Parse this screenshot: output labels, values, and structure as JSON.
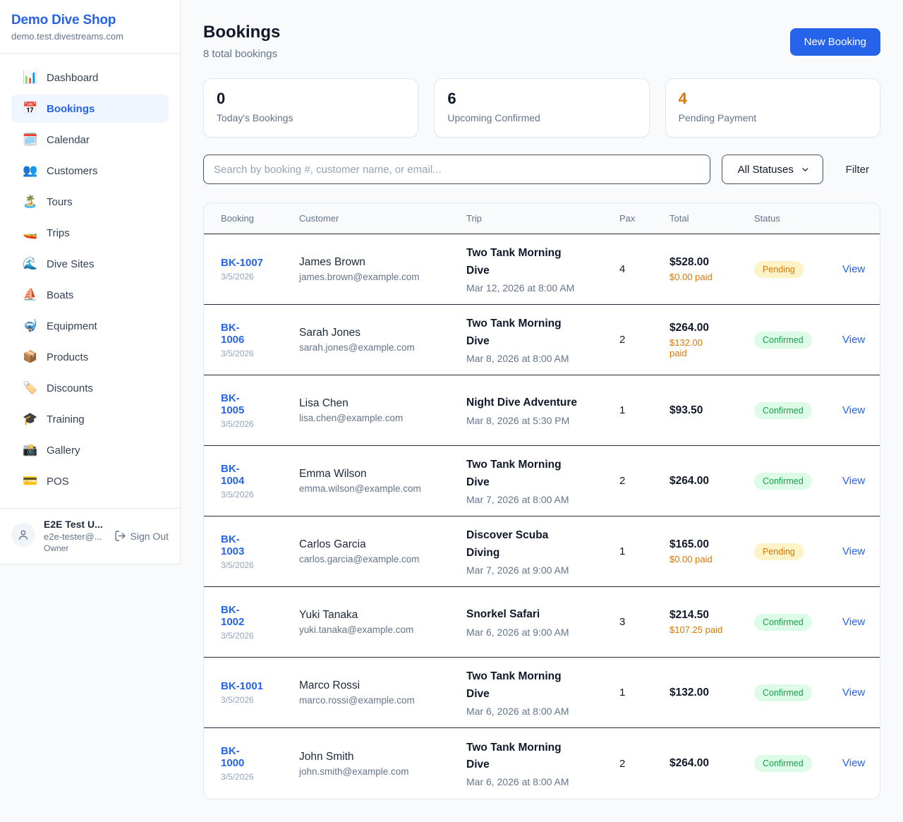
{
  "colors": {
    "accent": "#2563eb",
    "active_nav_bg": "#eff6ff",
    "pending_text": "#d97706",
    "pending_bg": "#fef3c7",
    "confirmed_text": "#16a34a",
    "confirmed_bg": "#dcfce7",
    "warning_number": "#d97706"
  },
  "sidebar": {
    "shop_name": "Demo Dive Shop",
    "shop_domain": "demo.test.divestreams.com",
    "items": [
      {
        "slug": "dashboard",
        "icon": "📊",
        "label": "Dashboard",
        "active": false
      },
      {
        "slug": "bookings",
        "icon": "📅",
        "label": "Bookings",
        "active": true
      },
      {
        "slug": "calendar",
        "icon": "🗓️",
        "label": "Calendar",
        "active": false
      },
      {
        "slug": "customers",
        "icon": "👥",
        "label": "Customers",
        "active": false
      },
      {
        "slug": "tours",
        "icon": "🏝️",
        "label": "Tours",
        "active": false
      },
      {
        "slug": "trips",
        "icon": "🚤",
        "label": "Trips",
        "active": false
      },
      {
        "slug": "dive-sites",
        "icon": "🌊",
        "label": "Dive Sites",
        "active": false
      },
      {
        "slug": "boats",
        "icon": "⛵",
        "label": "Boats",
        "active": false
      },
      {
        "slug": "equipment",
        "icon": "🤿",
        "label": "Equipment",
        "active": false
      },
      {
        "slug": "products",
        "icon": "📦",
        "label": "Products",
        "active": false
      },
      {
        "slug": "discounts",
        "icon": "🏷️",
        "label": "Discounts",
        "active": false
      },
      {
        "slug": "training",
        "icon": "🎓",
        "label": "Training",
        "active": false
      },
      {
        "slug": "gallery",
        "icon": "📸",
        "label": "Gallery",
        "active": false
      },
      {
        "slug": "pos",
        "icon": "💳",
        "label": "POS",
        "active": false
      }
    ],
    "user": {
      "name": "E2E Test U...",
      "email": "e2e-tester@...",
      "role": "Owner",
      "signout_label": "Sign Out"
    }
  },
  "header": {
    "title": "Bookings",
    "subtitle": "8 total bookings",
    "new_booking_label": "New Booking"
  },
  "stats": [
    {
      "value": "0",
      "label": "Today's Bookings"
    },
    {
      "value": "6",
      "label": "Upcoming Confirmed"
    },
    {
      "value": "4",
      "label": "Pending Payment"
    }
  ],
  "toolbar": {
    "search_placeholder": "Search by booking #, customer name, or email...",
    "status_filter_value": "All Statuses",
    "filter_label": "Filter"
  },
  "table": {
    "headers": [
      "Booking",
      "Customer",
      "Trip",
      "Pax",
      "Total",
      "Status"
    ],
    "view_label": "View",
    "rows": [
      {
        "number": "BK-1007",
        "date": "3/5/2026",
        "customer_name": "James Brown",
        "customer_email": "james.brown@example.com",
        "trip_name": "Two Tank Morning\nDive",
        "trip_datetime": "Mar 12, 2026 at 8:00 AM",
        "pax": "4",
        "total": "$528.00",
        "paid": "$0.00 paid",
        "status": "Pending"
      },
      {
        "number": "BK-\n1006",
        "date": "3/5/2026",
        "customer_name": "Sarah Jones",
        "customer_email": "sarah.jones@example.com",
        "trip_name": "Two Tank Morning\nDive",
        "trip_datetime": "Mar 8, 2026 at 8:00 AM",
        "pax": "2",
        "total": "$264.00",
        "paid": "$132.00\npaid",
        "status": "Confirmed"
      },
      {
        "number": "BK-\n1005",
        "date": "3/5/2026",
        "customer_name": "Lisa Chen",
        "customer_email": "lisa.chen@example.com",
        "trip_name": "Night Dive Adventure",
        "trip_datetime": "Mar 8, 2026 at 5:30 PM",
        "pax": "1",
        "total": "$93.50",
        "paid": null,
        "status": "Confirmed"
      },
      {
        "number": "BK-\n1004",
        "date": "3/5/2026",
        "customer_name": "Emma Wilson",
        "customer_email": "emma.wilson@example.com",
        "trip_name": "Two Tank Morning\nDive",
        "trip_datetime": "Mar 7, 2026 at 8:00 AM",
        "pax": "2",
        "total": "$264.00",
        "paid": null,
        "status": "Confirmed"
      },
      {
        "number": "BK-\n1003",
        "date": "3/5/2026",
        "customer_name": "Carlos Garcia",
        "customer_email": "carlos.garcia@example.com",
        "trip_name": "Discover Scuba\nDiving",
        "trip_datetime": "Mar 7, 2026 at 9:00 AM",
        "pax": "1",
        "total": "$165.00",
        "paid": "$0.00 paid",
        "status": "Pending"
      },
      {
        "number": "BK-\n1002",
        "date": "3/5/2026",
        "customer_name": "Yuki Tanaka",
        "customer_email": "yuki.tanaka@example.com",
        "trip_name": "Snorkel Safari",
        "trip_datetime": "Mar 6, 2026 at 9:00 AM",
        "pax": "3",
        "total": "$214.50",
        "paid": "$107.25 paid",
        "status": "Confirmed"
      },
      {
        "number": "BK-1001",
        "date": "3/5/2026",
        "customer_name": "Marco Rossi",
        "customer_email": "marco.rossi@example.com",
        "trip_name": "Two Tank Morning\nDive",
        "trip_datetime": "Mar 6, 2026 at 8:00 AM",
        "pax": "1",
        "total": "$132.00",
        "paid": null,
        "status": "Confirmed"
      },
      {
        "number": "BK-\n1000",
        "date": "3/5/2026",
        "customer_name": "John Smith",
        "customer_email": "john.smith@example.com",
        "trip_name": "Two Tank Morning\nDive",
        "trip_datetime": "Mar 6, 2026 at 8:00 AM",
        "pax": "2",
        "total": "$264.00",
        "paid": null,
        "status": "Confirmed"
      }
    ]
  }
}
